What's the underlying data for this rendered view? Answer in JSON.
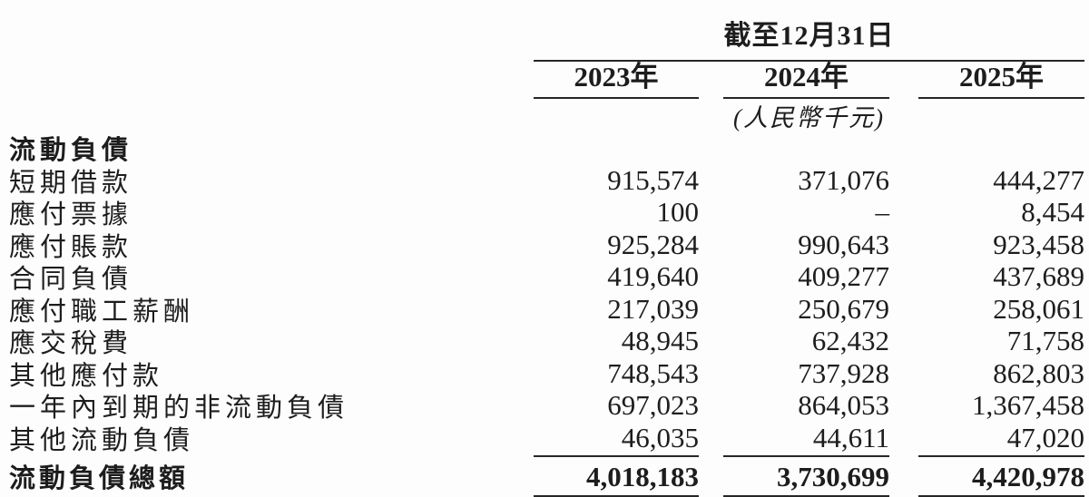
{
  "table": {
    "header": {
      "period_title": "截至12月31日",
      "columns": [
        "2023年",
        "2024年",
        "2025年"
      ],
      "unit_note": "(人民幣千元)"
    },
    "section_title": "流動負債",
    "rows": [
      {
        "label": "短期借款",
        "values": [
          "915,574",
          "371,076",
          "444,277"
        ]
      },
      {
        "label": "應付票據",
        "values": [
          "100",
          "–",
          "8,454"
        ]
      },
      {
        "label": "應付賬款",
        "values": [
          "925,284",
          "990,643",
          "923,458"
        ]
      },
      {
        "label": "合同負債",
        "values": [
          "419,640",
          "409,277",
          "437,689"
        ]
      },
      {
        "label": "應付職工薪酬",
        "values": [
          "217,039",
          "250,679",
          "258,061"
        ]
      },
      {
        "label": "應交稅費",
        "values": [
          "48,945",
          "62,432",
          "71,758"
        ]
      },
      {
        "label": "其他應付款",
        "values": [
          "748,543",
          "737,928",
          "862,803"
        ]
      },
      {
        "label": "一年內到期的非流動負債",
        "values": [
          "697,023",
          "864,053",
          "1,367,458"
        ]
      },
      {
        "label": "其他流動負債",
        "values": [
          "46,035",
          "44,611",
          "47,020"
        ]
      }
    ],
    "total_row": {
      "label": "流動負債總額",
      "values": [
        "4,018,183",
        "3,730,699",
        "4,420,978"
      ]
    }
  },
  "colors": {
    "text": "#1d1d1d",
    "rule": "#262626",
    "background": "#fdfdfd"
  }
}
